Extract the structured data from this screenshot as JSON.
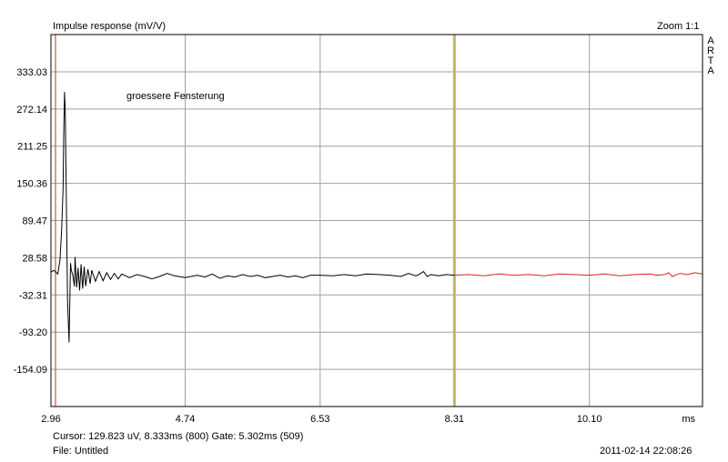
{
  "header": {
    "title": "Impulse response (mV/V)",
    "zoom": "Zoom 1:1",
    "brand_letters": [
      "A",
      "R",
      "T",
      "A"
    ]
  },
  "footer": {
    "cursor": "Cursor: 129.823 uV, 8.333ms (800)  Gate: 5.302ms (509)",
    "file": "File: Untitled",
    "datetime": "2011-02-14  22:08:26"
  },
  "chart_data": {
    "type": "line",
    "title": "Impulse response (mV/V)",
    "xlabel": "ms",
    "ylabel": "",
    "xlim": [
      2.96,
      11.6
    ],
    "ylim": [
      -215,
      394
    ],
    "x_ticks": [
      2.96,
      4.74,
      6.53,
      8.31,
      10.1
    ],
    "x_tick_labels": [
      "2.96",
      "4.74",
      "6.53",
      "8.31",
      "10.10"
    ],
    "y_ticks": [
      333.03,
      272.14,
      211.25,
      150.36,
      89.47,
      28.58,
      -32.31,
      -93.2,
      -154.09
    ],
    "y_tick_labels": [
      "333.03",
      "272.14",
      "211.25",
      "150.36",
      "89.47",
      "28.58",
      "-32.31",
      "-93.20",
      "-154.09"
    ],
    "grid": true,
    "annotation": "groessere Fensterung",
    "markers": [
      {
        "name": "gate-start",
        "x": 3.02,
        "color": "#c03030"
      },
      {
        "name": "gate-end",
        "x": 8.31,
        "color": "#bfb66a"
      }
    ],
    "colors": {
      "inside_gate": "#000000",
      "outside_gate": "#e02020",
      "grid": "#a0a0a0"
    },
    "series": [
      {
        "color": "#000000",
        "x": [
          2.96,
          3.0,
          3.05,
          3.08,
          3.1,
          3.12,
          3.13,
          3.14,
          3.15,
          3.16,
          3.17,
          3.18,
          3.2,
          3.21,
          3.22,
          3.23,
          3.25,
          3.27,
          3.28,
          3.3,
          3.32,
          3.34,
          3.36,
          3.38,
          3.4,
          3.42,
          3.45,
          3.48,
          3.5,
          3.55,
          3.6,
          3.65,
          3.7,
          3.75,
          3.8,
          3.85,
          3.9,
          4.0,
          4.1,
          4.2,
          4.3,
          4.4,
          4.5,
          4.6,
          4.74,
          4.9,
          5.0,
          5.1,
          5.2,
          5.3,
          5.4,
          5.5,
          5.6,
          5.7,
          5.8,
          5.9,
          6.0,
          6.1,
          6.2,
          6.3,
          6.4,
          6.53,
          6.7,
          6.85,
          7.0,
          7.15,
          7.3,
          7.45,
          7.6,
          7.7,
          7.8,
          7.85,
          7.9,
          7.95,
          8.0,
          8.1,
          8.2,
          8.31
        ],
        "y": [
          5,
          8,
          2,
          25,
          70,
          140,
          235,
          300,
          270,
          160,
          60,
          -40,
          -110,
          -45,
          20,
          8,
          0,
          -18,
          30,
          -20,
          12,
          -25,
          18,
          -22,
          14,
          -18,
          10,
          -14,
          8,
          -10,
          6,
          -9,
          4,
          -7,
          3,
          -6,
          2,
          -4,
          1,
          -2,
          -6,
          -2,
          3,
          -1,
          -4,
          0,
          -3,
          2,
          -5,
          -1,
          -3,
          1,
          -2,
          0,
          -4,
          -2,
          0,
          -3,
          -1,
          -4,
          0,
          0,
          -1,
          1,
          -1,
          2,
          1,
          0,
          -2,
          3,
          -1,
          2,
          6,
          -2,
          1,
          -1,
          1,
          0
        ]
      },
      {
        "color": "#e02020",
        "x": [
          8.31,
          8.5,
          8.7,
          8.9,
          9.1,
          9.3,
          9.5,
          9.7,
          9.9,
          10.1,
          10.3,
          10.5,
          10.7,
          10.9,
          11.0,
          11.1,
          11.15,
          11.2,
          11.3,
          11.4,
          11.5,
          11.6
        ],
        "y": [
          0,
          1,
          -1,
          2,
          0,
          1,
          -1,
          2,
          1,
          0,
          2,
          -1,
          1,
          2,
          0,
          1,
          4,
          -2,
          3,
          1,
          4,
          2
        ]
      }
    ]
  }
}
